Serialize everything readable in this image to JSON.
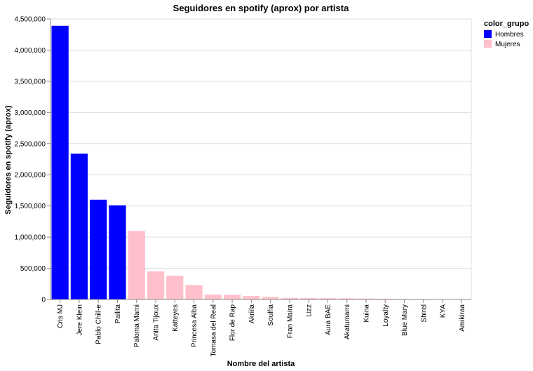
{
  "chart_data": {
    "type": "bar",
    "title": "Seguidores en spotify (aprox) por artista",
    "xlabel": "Nombre del artista",
    "ylabel": "Seguidores en spotify (aprox)",
    "ylim": [
      0,
      4500000
    ],
    "yticks": [
      0,
      500000,
      1000000,
      1500000,
      2000000,
      2500000,
      3000000,
      3500000,
      4000000,
      4500000
    ],
    "ytick_labels": [
      "0",
      "500,000",
      "1,000,000",
      "1,500,000",
      "2,000,000",
      "2,500,000",
      "3,000,000",
      "3,500,000",
      "4,000,000",
      "4,500,000"
    ],
    "grid": true,
    "categories": [
      "Cris MJ",
      "Jere Klein",
      "Pablo Chill-e",
      "Pailita",
      "Paloma Mami",
      "Anita Tijoux",
      "Katteyes",
      "Princesa Alba",
      "Tomasa del Real",
      "Flor de Rap",
      "Akriila",
      "Soulfia",
      "Fran Maira",
      "Lizz",
      "Aura BAE",
      "Akatumami",
      "Kuina",
      "Loyalty",
      "Blue Mary",
      "Shirel",
      "KYA",
      "Amikiraa"
    ],
    "values": [
      4390000,
      2340000,
      1600000,
      1510000,
      1100000,
      450000,
      380000,
      230000,
      80000,
      75000,
      55000,
      40000,
      25000,
      22000,
      20000,
      18000,
      15000,
      12000,
      9000,
      7000,
      5000,
      3000
    ],
    "groups": [
      "Hombres",
      "Hombres",
      "Hombres",
      "Hombres",
      "Mujeres",
      "Mujeres",
      "Mujeres",
      "Mujeres",
      "Mujeres",
      "Mujeres",
      "Mujeres",
      "Mujeres",
      "Mujeres",
      "Mujeres",
      "Mujeres",
      "Mujeres",
      "Mujeres",
      "Mujeres",
      "Mujeres",
      "Mujeres",
      "Mujeres",
      "Mujeres"
    ],
    "legend": {
      "title": "color_grupo",
      "position": "top-right",
      "entries": [
        {
          "label": "Hombres",
          "color": "#0000ff"
        },
        {
          "label": "Mujeres",
          "color": "#ffc0cb"
        }
      ]
    }
  }
}
